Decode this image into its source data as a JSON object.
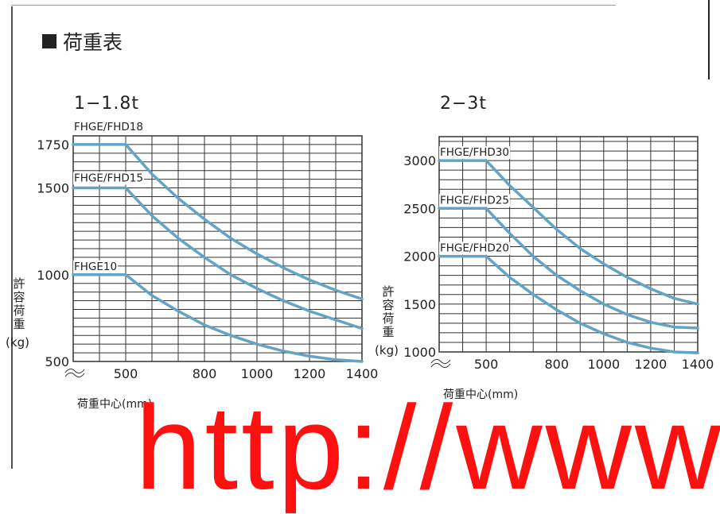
{
  "heading": {
    "bullet": "■",
    "title": "荷重表"
  },
  "colors": {
    "curve": "#63a3c6",
    "grid": "#333333",
    "text": "#222222",
    "watermark": "#ff1010"
  },
  "chart_data": [
    {
      "type": "line",
      "title": "1−1.8t",
      "xlabel": "荷重中心(mm)",
      "ylabel": "許容荷重(kg)",
      "xlim": [
        300,
        1400
      ],
      "ylim": [
        500,
        1800
      ],
      "x_ticks": [
        500,
        800,
        1000,
        1200,
        1400
      ],
      "y_ticks": [
        500,
        1000,
        1500,
        1750
      ],
      "grid": true,
      "series": [
        {
          "name": "FHGE/FHD18",
          "x": [
            300,
            500,
            600,
            700,
            800,
            900,
            1000,
            1100,
            1200,
            1300,
            1400
          ],
          "y": [
            1750,
            1750,
            1580,
            1440,
            1320,
            1210,
            1120,
            1040,
            970,
            910,
            860
          ]
        },
        {
          "name": "FHGE/FHD15",
          "x": [
            300,
            500,
            600,
            700,
            800,
            900,
            1000,
            1100,
            1200,
            1300,
            1400
          ],
          "y": [
            1500,
            1500,
            1340,
            1210,
            1100,
            1000,
            920,
            850,
            790,
            740,
            690
          ]
        },
        {
          "name": "FHGE10",
          "x": [
            300,
            500,
            600,
            700,
            800,
            900,
            1000,
            1100,
            1200,
            1300,
            1400
          ],
          "y": [
            1000,
            1000,
            880,
            790,
            710,
            650,
            600,
            560,
            530,
            510,
            500
          ]
        }
      ]
    },
    {
      "type": "line",
      "title": "2−3t",
      "xlabel": "荷重中心(mm)",
      "ylabel": "許容荷重(kg)",
      "xlim": [
        300,
        1400
      ],
      "ylim": [
        1000,
        3250
      ],
      "x_ticks": [
        500,
        800,
        1000,
        1200,
        1400
      ],
      "y_ticks": [
        1000,
        1500,
        2000,
        2500,
        3000
      ],
      "grid": true,
      "series": [
        {
          "name": "FHGE/FHD30",
          "x": [
            300,
            500,
            600,
            700,
            800,
            900,
            1000,
            1100,
            1200,
            1300,
            1400
          ],
          "y": [
            3000,
            3000,
            2740,
            2510,
            2280,
            2080,
            1920,
            1780,
            1660,
            1560,
            1500
          ]
        },
        {
          "name": "FHGE/FHD25",
          "x": [
            300,
            500,
            600,
            700,
            800,
            900,
            1000,
            1100,
            1200,
            1300,
            1400
          ],
          "y": [
            2500,
            2500,
            2240,
            2000,
            1800,
            1640,
            1500,
            1390,
            1310,
            1260,
            1250
          ]
        },
        {
          "name": "FHGE/FHD20",
          "x": [
            300,
            500,
            600,
            700,
            800,
            900,
            1000,
            1100,
            1200,
            1300,
            1400
          ],
          "y": [
            2000,
            2000,
            1780,
            1600,
            1440,
            1300,
            1190,
            1100,
            1040,
            1000,
            990
          ]
        }
      ]
    }
  ],
  "watermark": "http://www"
}
